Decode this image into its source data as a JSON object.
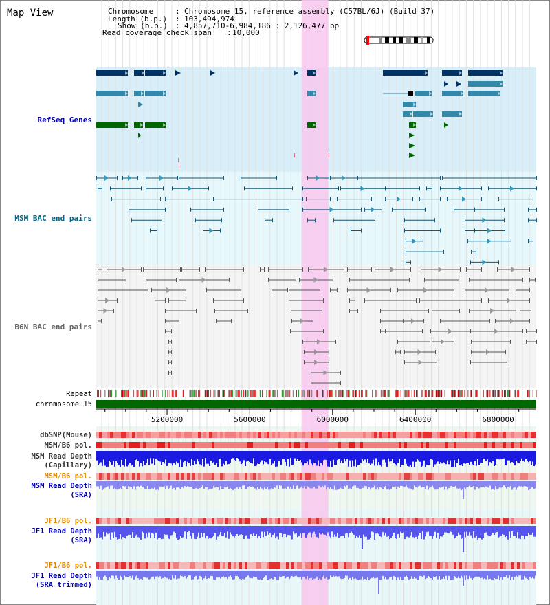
{
  "title": "Map View",
  "info": {
    "chromosome_label": "Chromosome",
    "chromosome_value": "Chromosome 15, reference assembly (C57BL/6J) (Build 37)",
    "length_label": "Length (b.p.)",
    "length_value": "103,494,974",
    "show_label": "Show (b.p.)",
    "show_value": "4,857,710-6,984,186 : 2,126,477 bp",
    "coverage_label": "Read coverage check span",
    "coverage_value": "10,000"
  },
  "view_range": [
    4857710,
    6984186
  ],
  "highlight_range": [
    5850000,
    5980000
  ],
  "ruler": {
    "chromosome_name": "chromosome 15",
    "ticks": [
      "5200000",
      "5600000",
      "6000000",
      "6400000",
      "6800000"
    ],
    "tick_values": [
      5200000,
      5600000,
      6000000,
      6400000,
      6800000
    ]
  },
  "tracks": {
    "refseq": "RefSeq Genes",
    "msm_bac": "MSM BAC end pairs",
    "b6n_bac": "B6N BAC end pairs",
    "repeat": "Repeat",
    "dbsnp": "dbSNP(Mouse)",
    "msm_b6_pol": "MSM/B6 pol.",
    "msm_depth_cap_1": "MSM Read Depth",
    "msm_depth_cap_2": "(Capillary)",
    "msm_b6_pol_2": "MSM/B6 pol.",
    "msm_depth_sra_1": "MSM Read Depth",
    "msm_depth_sra_2": "(SRA)",
    "jf1_b6_pol": "JF1/B6 pol.",
    "jf1_depth_sra_1": "JF1 Read Depth",
    "jf1_depth_sra_2": "(SRA)",
    "jf1_b6_pol_2": "JF1/B6 pol.",
    "jf1_depth_trim_1": "JF1 Read Depth",
    "jf1_depth_trim_2": "(SRA trimmed)"
  },
  "colors": {
    "label_blue": "#0000aa",
    "label_teal": "#006688",
    "label_gray": "#666666",
    "label_orange": "#dd8800",
    "refseq_bg": "#d8eef8",
    "msm_bg": "#e6f8fb",
    "b6n_bg": "#f0f0f0",
    "highlight": "#f8c8ee",
    "chrom_green": "#006600"
  }
}
